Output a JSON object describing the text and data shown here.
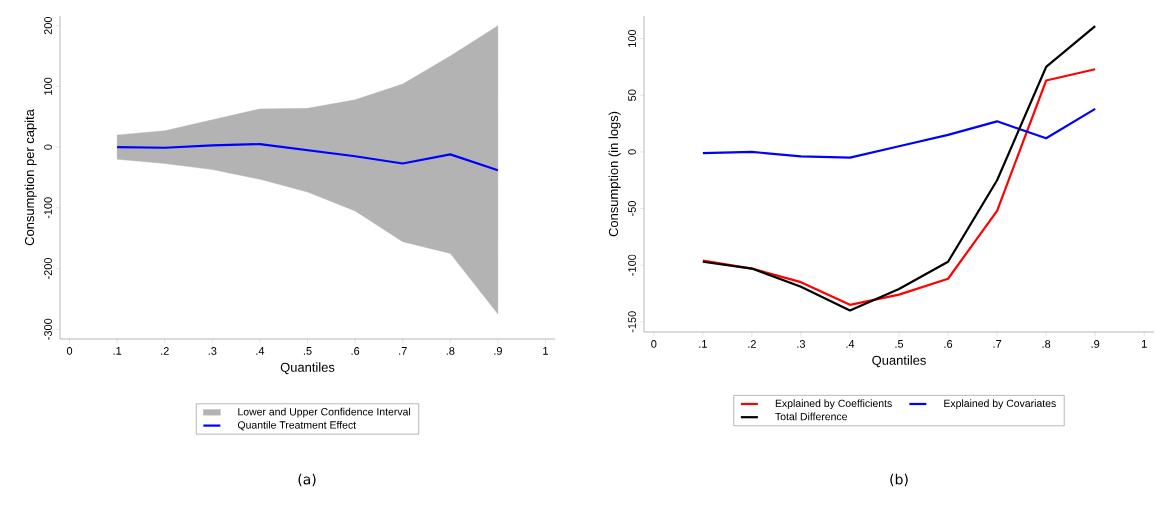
{
  "chart_data": [
    {
      "type": "line",
      "xlabel": "Quantiles",
      "ylabel": "Consumption per capita",
      "x": [
        0.1,
        0.2,
        0.3,
        0.4,
        0.5,
        0.6,
        0.7,
        0.8,
        0.9
      ],
      "series": [
        {
          "name": "Lower and Upper Confidence Interval",
          "type": "line",
          "color": "#b3b3b3",
          "values": [
            null,
            null,
            null,
            null,
            null,
            null,
            null,
            null,
            null
          ],
          "lower": [
            -20,
            -27,
            -37,
            -53,
            -74,
            -105,
            -156,
            -175,
            -275
          ],
          "upper": [
            20,
            27,
            45,
            63,
            64,
            78,
            104,
            150,
            200
          ]
        },
        {
          "name": "Quantile Treatment Effect",
          "type": "line",
          "color": "#0000ff",
          "values": [
            0,
            -1,
            3,
            5,
            -5,
            -15,
            -27,
            -12,
            -38
          ]
        }
      ],
      "xlim": [
        -0.02,
        1.02
      ],
      "ylim": [
        -316,
        216
      ],
      "xticks": [
        0,
        {
          "value": 0.1,
          "label": ".1"
        },
        {
          "value": 0.2,
          "label": ".2"
        },
        {
          "value": 0.3,
          "label": ".3"
        },
        {
          "value": 0.4,
          "label": ".4"
        },
        {
          "value": 0.5,
          "label": ".5"
        },
        {
          "value": 0.6,
          "label": ".6"
        },
        {
          "value": 0.7,
          "label": ".7"
        },
        {
          "value": 0.8,
          "label": ".8"
        },
        {
          "value": 0.9,
          "label": ".9"
        },
        1
      ],
      "yticks": [
        -300,
        -200,
        -100,
        0,
        100,
        200
      ],
      "grid": false,
      "legend": "bottom",
      "annotations": [
        "(a)"
      ]
    },
    {
      "type": "line",
      "xlabel": "Quantiles",
      "ylabel": "Consumption (in logs)",
      "x": [
        0.1,
        0.2,
        0.3,
        0.4,
        0.5,
        0.6,
        0.7,
        0.8,
        0.9
      ],
      "series": [
        {
          "name": "Explained by Coefficients",
          "color": "#ff0000",
          "values": [
            -96,
            -103,
            -115,
            -135,
            -126,
            -112,
            -52,
            63,
            73
          ]
        },
        {
          "name": "Explained by Covariates",
          "color": "#0000ff",
          "values": [
            -1,
            0,
            -4,
            -5,
            5,
            15,
            27,
            12,
            38
          ]
        },
        {
          "name": "Total Difference",
          "color": "#000000",
          "values": [
            -97,
            -103,
            -119,
            -140,
            -121,
            -97,
            -25,
            75,
            111
          ]
        }
      ],
      "xlim": [
        -0.02,
        1.02
      ],
      "ylim": [
        -159,
        120
      ],
      "xticks": [
        0,
        {
          "value": 0.1,
          "label": ".1"
        },
        {
          "value": 0.2,
          "label": ".2"
        },
        {
          "value": 0.3,
          "label": ".3"
        },
        {
          "value": 0.4,
          "label": ".4"
        },
        {
          "value": 0.5,
          "label": ".5"
        },
        {
          "value": 0.6,
          "label": ".6"
        },
        {
          "value": 0.7,
          "label": ".7"
        },
        {
          "value": 0.8,
          "label": ".8"
        },
        {
          "value": 0.9,
          "label": ".9"
        },
        1
      ],
      "yticks": [
        -150,
        -100,
        -50,
        0,
        50,
        100
      ],
      "grid": false,
      "legend": "bottom",
      "annotations": [
        "(b)"
      ]
    }
  ]
}
